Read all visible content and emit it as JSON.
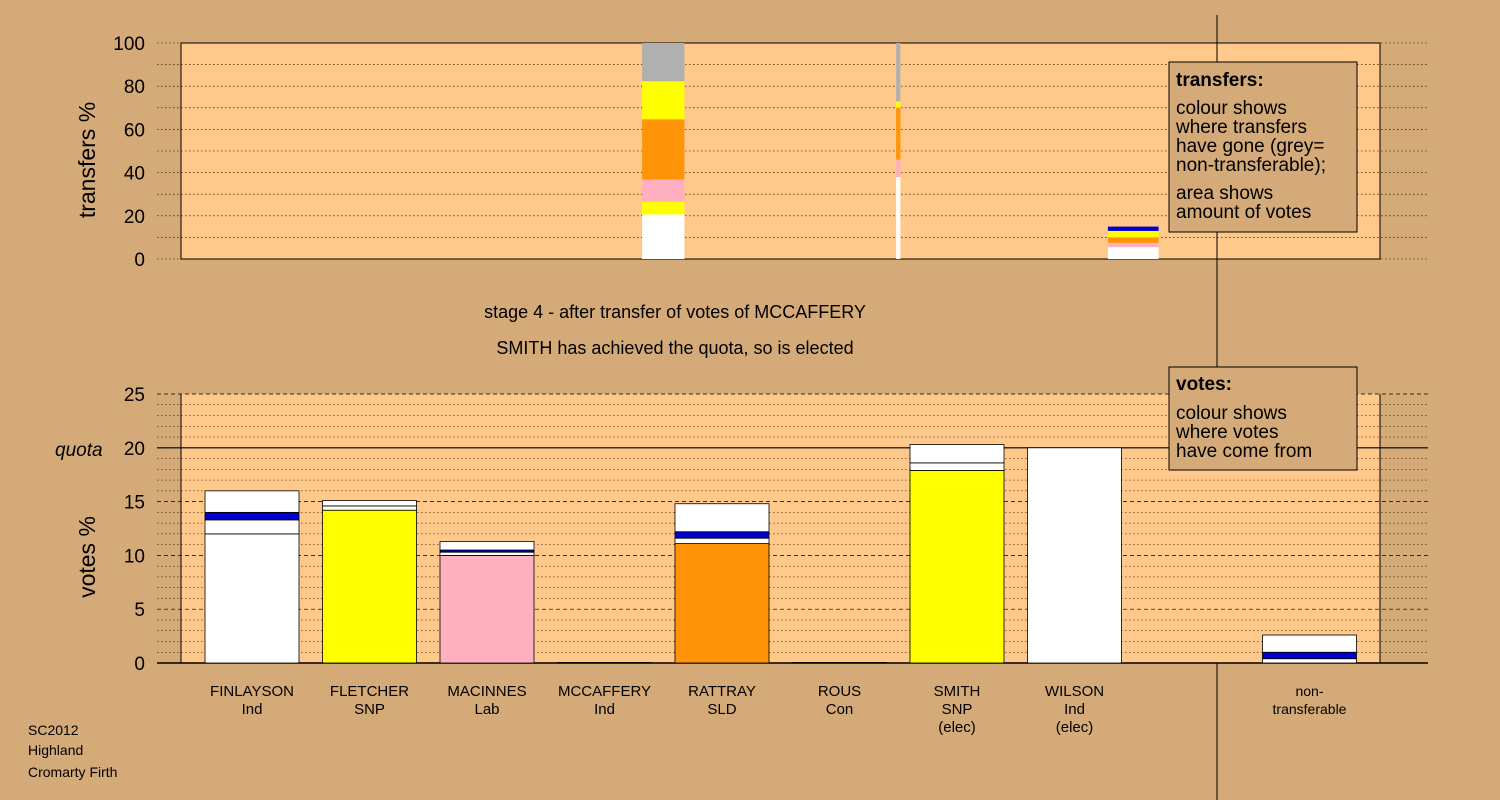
{
  "colors": {
    "background": "#d4aa78",
    "plot_area": "#ffc98b",
    "white": "#ffffff",
    "yellow": "#ffff00",
    "orange": "#ff9408",
    "pink": "#ffb0c0",
    "grey": "#b0b0b0",
    "blue": "#0000d0"
  },
  "stage_line1": "stage 4 - after transfer of votes of MCCAFFERY",
  "stage_line2": "SMITH has achieved the quota, so is elected",
  "footer": [
    "SC2012",
    "Highland",
    "Cromarty Firth"
  ],
  "quota_label": "quota",
  "legend_transfers": {
    "title": "transfers:",
    "lines": [
      "colour shows",
      "where transfers",
      "have gone (grey=",
      "non-transferable);",
      "area shows",
      "amount of votes"
    ]
  },
  "legend_votes": {
    "title": "votes:",
    "lines": [
      "colour shows",
      "where votes",
      "have come from"
    ]
  },
  "chart_data": [
    {
      "type": "bar",
      "id": "transfers",
      "ylabel": "transfers %",
      "ylim": [
        0,
        100
      ],
      "yticks": [
        0,
        20,
        40,
        60,
        80,
        100
      ],
      "stacked": true,
      "bars": [
        {
          "slot": 3.5,
          "width_fraction": 1.0,
          "segments": [
            {
              "color": "white",
              "value": 20.6
            },
            {
              "color": "yellow",
              "value": 5.9
            },
            {
              "color": "pink",
              "value": 10.3
            },
            {
              "color": "orange",
              "value": 27.9
            },
            {
              "color": "yellow",
              "value": 17.6
            },
            {
              "color": "grey",
              "value": 17.7
            }
          ]
        },
        {
          "slot": 5.5,
          "width_fraction": 0.1,
          "segments": [
            {
              "color": "white",
              "value": 38
            },
            {
              "color": "pink",
              "value": 8
            },
            {
              "color": "orange",
              "value": 24
            },
            {
              "color": "yellow",
              "value": 3
            },
            {
              "color": "grey",
              "value": 27
            }
          ]
        },
        {
          "slot": 7.5,
          "width_fraction": 1.2,
          "segments": [
            {
              "color": "white",
              "value": 5.5
            },
            {
              "color": "pink",
              "value": 2
            },
            {
              "color": "orange",
              "value": 2.5
            },
            {
              "color": "yellow",
              "value": 3
            },
            {
              "color": "blue",
              "value": 2
            }
          ]
        }
      ]
    },
    {
      "type": "bar",
      "id": "votes",
      "ylabel": "votes %",
      "ylim": [
        0,
        25
      ],
      "yticks": [
        0,
        5,
        10,
        15,
        20,
        25
      ],
      "quota": 20,
      "stacked": true,
      "categories": [
        {
          "name": "FINLAYSON",
          "party": "Ind",
          "elected": ""
        },
        {
          "name": "FLETCHER",
          "party": "SNP",
          "elected": ""
        },
        {
          "name": "MACINNES",
          "party": "Lab",
          "elected": ""
        },
        {
          "name": "MCCAFFERY",
          "party": "Ind",
          "elected": ""
        },
        {
          "name": "RATTRAY",
          "party": "SLD",
          "elected": ""
        },
        {
          "name": "ROUS",
          "party": "Con",
          "elected": ""
        },
        {
          "name": "SMITH",
          "party": "SNP",
          "elected": "(elec)"
        },
        {
          "name": "WILSON",
          "party": "Ind",
          "elected": "(elec)"
        },
        {
          "name": "non-",
          "party": "transferable",
          "elected": ""
        }
      ],
      "bars": [
        {
          "slot": 0,
          "segments": [
            {
              "color": "white",
              "value": 12.0
            },
            {
              "color": "white",
              "value": 1.3
            },
            {
              "color": "blue",
              "value": 0.7
            },
            {
              "color": "white",
              "value": 2.0
            }
          ]
        },
        {
          "slot": 1,
          "segments": [
            {
              "color": "yellow",
              "value": 14.2
            },
            {
              "color": "white",
              "value": 0.4
            },
            {
              "color": "white",
              "value": 0.5
            }
          ]
        },
        {
          "slot": 2,
          "segments": [
            {
              "color": "pink",
              "value": 10.0
            },
            {
              "color": "white",
              "value": 0.3
            },
            {
              "color": "blue",
              "value": 0.2
            },
            {
              "color": "white",
              "value": 0.8
            }
          ]
        },
        {
          "slot": 3,
          "segments": [
            {
              "color": "white",
              "value": 0.05
            }
          ]
        },
        {
          "slot": 4,
          "segments": [
            {
              "color": "orange",
              "value": 11.1
            },
            {
              "color": "white",
              "value": 0.5
            },
            {
              "color": "blue",
              "value": 0.6
            },
            {
              "color": "white",
              "value": 2.6
            }
          ]
        },
        {
          "slot": 5,
          "segments": [
            {
              "color": "white",
              "value": 0.05
            }
          ]
        },
        {
          "slot": 6,
          "segments": [
            {
              "color": "yellow",
              "value": 17.9
            },
            {
              "color": "white",
              "value": 0.7
            },
            {
              "color": "white",
              "value": 1.7
            }
          ]
        },
        {
          "slot": 7,
          "segments": [
            {
              "color": "white",
              "value": 20.0
            }
          ]
        },
        {
          "slot": 9,
          "segments": [
            {
              "color": "white",
              "value": 0.4
            },
            {
              "color": "blue",
              "value": 0.6
            },
            {
              "color": "white",
              "value": 1.6
            }
          ]
        }
      ]
    }
  ]
}
